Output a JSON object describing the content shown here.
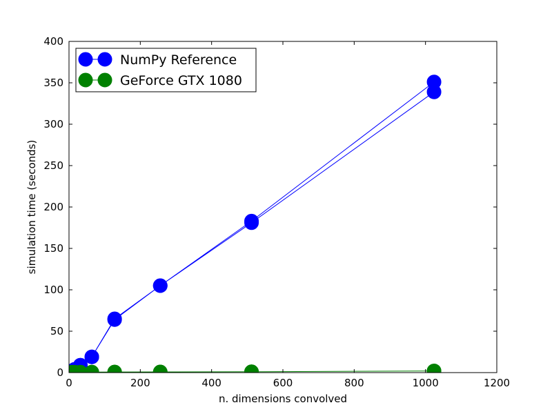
{
  "chart_data": {
    "type": "line",
    "title": "",
    "xlabel": "n. dimensions convolved",
    "ylabel": "simulation time (seconds)",
    "xlim": [
      0,
      1200
    ],
    "ylim": [
      0,
      400
    ],
    "xticks": [
      "0",
      "200",
      "400",
      "600",
      "800",
      "1000",
      "1200"
    ],
    "yticks": [
      "0",
      "50",
      "100",
      "150",
      "200",
      "250",
      "300",
      "350",
      "400"
    ],
    "grid": false,
    "legend_position": "top-left",
    "series": [
      {
        "name": "NumPy Reference",
        "color": "#0000ff",
        "marker": "circle",
        "x": [
          8,
          16,
          32,
          64,
          128,
          256,
          512,
          1024,
          1024,
          512,
          256,
          128,
          64,
          32,
          16,
          8
        ],
        "y": [
          2,
          4,
          9,
          19,
          64,
          105,
          183,
          351,
          339,
          181,
          105,
          65,
          19,
          9,
          4,
          2
        ]
      },
      {
        "name": "GeForce GTX 1080",
        "color": "#008000",
        "marker": "circle",
        "x": [
          8,
          16,
          32,
          64,
          128,
          256,
          512,
          1024,
          1024,
          512,
          256,
          128,
          64,
          32,
          16,
          8
        ],
        "y": [
          0.5,
          0.5,
          0.5,
          0.6,
          0.7,
          0.8,
          1,
          2,
          2,
          1,
          0.8,
          0.7,
          0.6,
          0.5,
          0.5,
          0.5
        ]
      }
    ]
  }
}
